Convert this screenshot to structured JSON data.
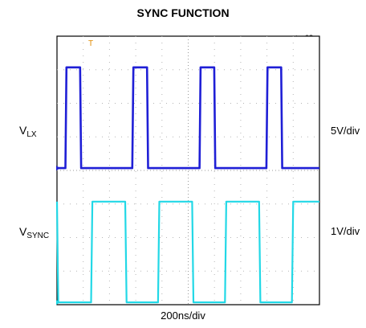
{
  "chart_data": {
    "type": "line",
    "title": "SYNC FUNCTION",
    "figure_tag": "toc08",
    "time_scale": "200ns/div",
    "grid": true,
    "trigger_marker": "T",
    "divisions": {
      "x": 10,
      "y": 8
    },
    "series": [
      {
        "name": "V_LX",
        "label_main": "V",
        "label_sub": "LX",
        "scale": "5V/div",
        "color": "#1f1fd6",
        "unit_divisions": true,
        "low_div": 0.0,
        "high_div": 3.0,
        "baseline_y_div": 3.93,
        "pulses": [
          [
            0.32,
            0.88
          ],
          [
            2.87,
            3.43
          ],
          [
            5.43,
            5.99
          ],
          [
            7.98,
            8.54
          ]
        ]
      },
      {
        "name": "V_SYNC",
        "label_main": "V",
        "label_sub": "SYNC",
        "scale": "1V/div",
        "color": "#22d8e6",
        "unit_divisions": true,
        "low_div": 0.0,
        "high_div": 3.0,
        "baseline_y_div": 7.93,
        "pulses": [
          [
            -0.1,
            0.0
          ],
          [
            1.3,
            2.6
          ],
          [
            3.85,
            5.15
          ],
          [
            6.4,
            7.7
          ],
          [
            8.95,
            10.0
          ]
        ]
      }
    ]
  }
}
